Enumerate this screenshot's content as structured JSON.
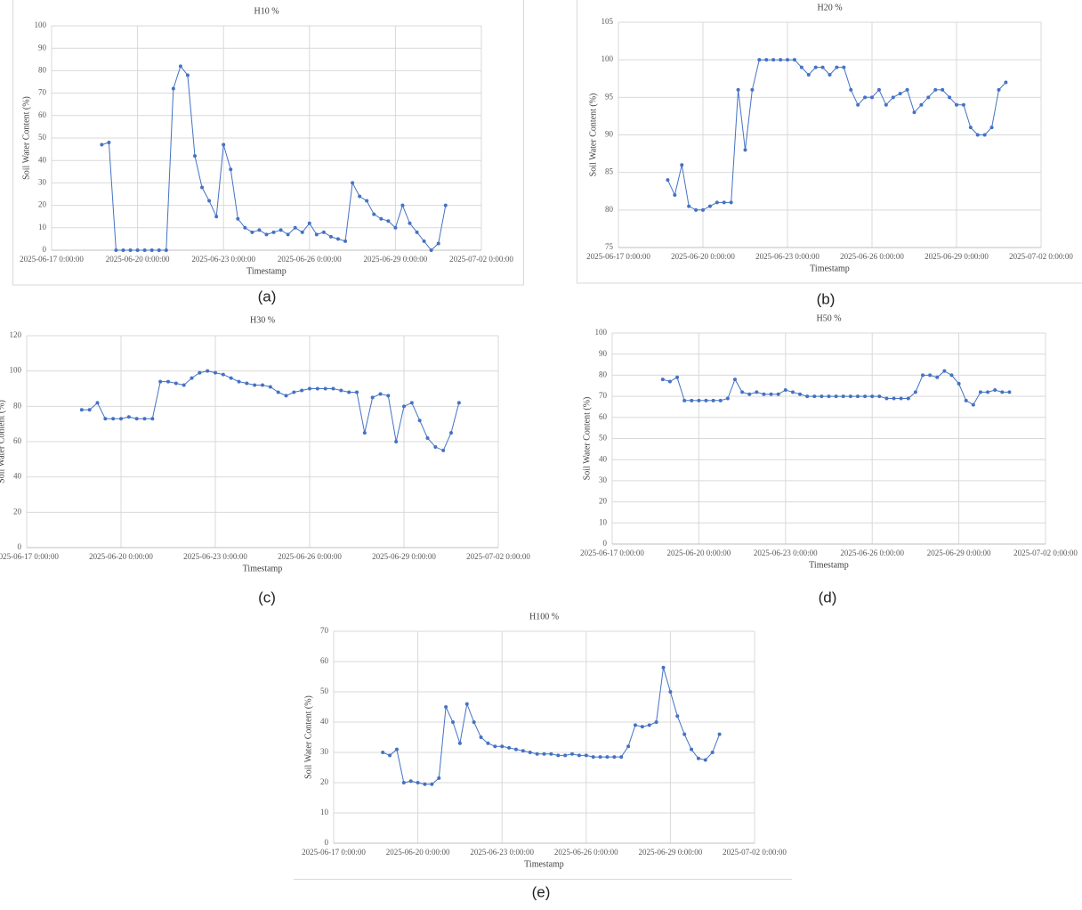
{
  "chart_data": [
    {
      "type": "line",
      "title": "H10 %",
      "xlabel": "Timestamp",
      "ylabel": "Soil Water Content (%)",
      "caption": "(a)",
      "color": "#4472c4",
      "grid": true,
      "x": [
        "2025-06-18 18:00:00",
        "2025-06-19 0:00:00",
        "2025-06-19 6:00:00",
        "2025-06-19 12:00:00",
        "2025-06-19 18:00:00",
        "2025-06-20 0:00:00",
        "2025-06-20 6:00:00",
        "2025-06-20 12:00:00",
        "2025-06-20 18:00:00",
        "2025-06-21 0:00:00",
        "2025-06-21 6:00:00",
        "2025-06-21 12:00:00",
        "2025-06-21 18:00:00",
        "2025-06-22 0:00:00",
        "2025-06-22 6:00:00",
        "2025-06-22 12:00:00",
        "2025-06-22 18:00:00",
        "2025-06-23 0:00:00",
        "2025-06-23 6:00:00",
        "2025-06-23 12:00:00",
        "2025-06-23 18:00:00",
        "2025-06-24 0:00:00",
        "2025-06-24 6:00:00",
        "2025-06-24 12:00:00",
        "2025-06-24 18:00:00",
        "2025-06-25 0:00:00",
        "2025-06-25 6:00:00",
        "2025-06-25 12:00:00",
        "2025-06-25 18:00:00",
        "2025-06-26 0:00:00",
        "2025-06-26 6:00:00",
        "2025-06-26 12:00:00",
        "2025-06-26 18:00:00",
        "2025-06-27 0:00:00",
        "2025-06-27 6:00:00",
        "2025-06-27 12:00:00",
        "2025-06-27 18:00:00",
        "2025-06-28 0:00:00",
        "2025-06-28 6:00:00",
        "2025-06-28 12:00:00",
        "2025-06-28 18:00:00",
        "2025-06-29 0:00:00",
        "2025-06-29 6:00:00",
        "2025-06-29 12:00:00",
        "2025-06-29 18:00:00",
        "2025-06-30 0:00:00",
        "2025-06-30 6:00:00",
        "2025-06-30 12:00:00",
        "2025-06-30 18:00:00"
      ],
      "values": [
        47,
        48,
        0,
        0,
        0,
        0,
        0,
        0,
        0,
        0,
        72,
        82,
        78,
        42,
        28,
        22,
        15,
        47,
        36,
        14,
        10,
        8,
        9,
        7,
        8,
        9,
        7,
        10,
        8,
        12,
        7,
        8,
        6,
        5,
        4,
        30,
        24,
        22,
        16,
        14,
        13,
        10,
        20,
        12,
        8,
        4,
        0,
        3,
        20
      ],
      "xlim": [
        "2025-06-17 0:00:00",
        "2025-07-02 0:00:00"
      ],
      "xticks": [
        "2025-06-17 0:00:00",
        "2025-06-20 0:00:00",
        "2025-06-23 0:00:00",
        "2025-06-26 0:00:00",
        "2025-06-29 0:00:00",
        "2025-07-02 0:00:00"
      ],
      "ylim": [
        0,
        100
      ],
      "yticks": [
        0,
        10,
        20,
        30,
        40,
        50,
        60,
        70,
        80,
        90,
        100
      ]
    },
    {
      "type": "line",
      "title": "H20 %",
      "xlabel": "Timestamp",
      "ylabel": "Soil Water Content (%)",
      "caption": "(b)",
      "color": "#4472c4",
      "grid": true,
      "x": [
        "2025-06-18 18:00:00",
        "2025-06-19 0:00:00",
        "2025-06-19 6:00:00",
        "2025-06-19 12:00:00",
        "2025-06-19 18:00:00",
        "2025-06-20 0:00:00",
        "2025-06-20 6:00:00",
        "2025-06-20 12:00:00",
        "2025-06-20 18:00:00",
        "2025-06-21 0:00:00",
        "2025-06-21 6:00:00",
        "2025-06-21 12:00:00",
        "2025-06-21 18:00:00",
        "2025-06-22 0:00:00",
        "2025-06-22 6:00:00",
        "2025-06-22 12:00:00",
        "2025-06-22 18:00:00",
        "2025-06-23 0:00:00",
        "2025-06-23 6:00:00",
        "2025-06-23 12:00:00",
        "2025-06-23 18:00:00",
        "2025-06-24 0:00:00",
        "2025-06-24 6:00:00",
        "2025-06-24 12:00:00",
        "2025-06-24 18:00:00",
        "2025-06-25 0:00:00",
        "2025-06-25 6:00:00",
        "2025-06-25 12:00:00",
        "2025-06-25 18:00:00",
        "2025-06-26 0:00:00",
        "2025-06-26 6:00:00",
        "2025-06-26 12:00:00",
        "2025-06-26 18:00:00",
        "2025-06-27 0:00:00",
        "2025-06-27 6:00:00",
        "2025-06-27 12:00:00",
        "2025-06-27 18:00:00",
        "2025-06-28 0:00:00",
        "2025-06-28 6:00:00",
        "2025-06-28 12:00:00",
        "2025-06-28 18:00:00",
        "2025-06-29 0:00:00",
        "2025-06-29 6:00:00",
        "2025-06-29 12:00:00",
        "2025-06-29 18:00:00",
        "2025-06-30 0:00:00",
        "2025-06-30 6:00:00",
        "2025-06-30 12:00:00",
        "2025-06-30 18:00:00"
      ],
      "values": [
        84,
        82,
        86,
        80.5,
        80,
        80,
        80.5,
        81,
        81,
        81,
        96,
        88,
        96,
        100,
        100,
        100,
        100,
        100,
        100,
        99,
        98,
        99,
        99,
        98,
        99,
        99,
        96,
        94,
        95,
        95,
        96,
        94,
        95,
        95.5,
        96,
        93,
        94,
        95,
        96,
        96,
        95,
        94,
        94,
        91,
        90,
        90,
        91,
        96,
        97
      ],
      "xlim": [
        "2025-06-17 0:00:00",
        "2025-07-02 0:00:00"
      ],
      "xticks": [
        "2025-06-17 0:00:00",
        "2025-06-20 0:00:00",
        "2025-06-23 0:00:00",
        "2025-06-26 0:00:00",
        "2025-06-29 0:00:00",
        "2025-07-02 0:00:00"
      ],
      "ylim": [
        75,
        105
      ],
      "yticks": [
        75,
        80,
        85,
        90,
        95,
        100,
        105
      ]
    },
    {
      "type": "line",
      "title": "H30 %",
      "xlabel": "Timestamp",
      "ylabel": "Soil Water Content (%)",
      "caption": "(c)",
      "color": "#4472c4",
      "grid": true,
      "x": [
        "2025-06-18 18:00:00",
        "2025-06-19 0:00:00",
        "2025-06-19 6:00:00",
        "2025-06-19 12:00:00",
        "2025-06-19 18:00:00",
        "2025-06-20 0:00:00",
        "2025-06-20 6:00:00",
        "2025-06-20 12:00:00",
        "2025-06-20 18:00:00",
        "2025-06-21 0:00:00",
        "2025-06-21 6:00:00",
        "2025-06-21 12:00:00",
        "2025-06-21 18:00:00",
        "2025-06-22 0:00:00",
        "2025-06-22 6:00:00",
        "2025-06-22 12:00:00",
        "2025-06-22 18:00:00",
        "2025-06-23 0:00:00",
        "2025-06-23 6:00:00",
        "2025-06-23 12:00:00",
        "2025-06-23 18:00:00",
        "2025-06-24 0:00:00",
        "2025-06-24 6:00:00",
        "2025-06-24 12:00:00",
        "2025-06-24 18:00:00",
        "2025-06-25 0:00:00",
        "2025-06-25 6:00:00",
        "2025-06-25 12:00:00",
        "2025-06-25 18:00:00",
        "2025-06-26 0:00:00",
        "2025-06-26 6:00:00",
        "2025-06-26 12:00:00",
        "2025-06-26 18:00:00",
        "2025-06-27 0:00:00",
        "2025-06-27 6:00:00",
        "2025-06-27 12:00:00",
        "2025-06-27 18:00:00",
        "2025-06-28 0:00:00",
        "2025-06-28 6:00:00",
        "2025-06-28 12:00:00",
        "2025-06-28 18:00:00",
        "2025-06-29 0:00:00",
        "2025-06-29 6:00:00",
        "2025-06-29 12:00:00",
        "2025-06-29 18:00:00",
        "2025-06-30 0:00:00",
        "2025-06-30 6:00:00",
        "2025-06-30 12:00:00",
        "2025-06-30 18:00:00"
      ],
      "values": [
        78,
        78,
        82,
        73,
        73,
        73,
        74,
        73,
        73,
        73,
        94,
        94,
        93,
        92,
        96,
        99,
        100,
        99,
        98,
        96,
        94,
        93,
        92,
        92,
        91,
        88,
        86,
        88,
        89,
        90,
        90,
        90,
        90,
        89,
        88,
        88,
        65,
        85,
        87,
        86,
        60,
        80,
        82,
        72,
        62,
        57,
        55,
        65,
        82
      ],
      "xlim": [
        "2025-06-17 0:00:00",
        "2025-07-02 0:00:00"
      ],
      "xticks": [
        "2025-06-17 0:00:00",
        "2025-06-20 0:00:00",
        "2025-06-23 0:00:00",
        "2025-06-26 0:00:00",
        "2025-06-29 0:00:00",
        "2025-07-02 0:00:00"
      ],
      "ylim": [
        0,
        120
      ],
      "yticks": [
        0,
        20,
        40,
        60,
        80,
        100,
        120
      ]
    },
    {
      "type": "line",
      "title": "H50 %",
      "xlabel": "Timestamp",
      "ylabel": "Soil Water Content (%)",
      "caption": "(d)",
      "color": "#4472c4",
      "grid": true,
      "x": [
        "2025-06-18 18:00:00",
        "2025-06-19 0:00:00",
        "2025-06-19 6:00:00",
        "2025-06-19 12:00:00",
        "2025-06-19 18:00:00",
        "2025-06-20 0:00:00",
        "2025-06-20 6:00:00",
        "2025-06-20 12:00:00",
        "2025-06-20 18:00:00",
        "2025-06-21 0:00:00",
        "2025-06-21 6:00:00",
        "2025-06-21 12:00:00",
        "2025-06-21 18:00:00",
        "2025-06-22 0:00:00",
        "2025-06-22 6:00:00",
        "2025-06-22 12:00:00",
        "2025-06-22 18:00:00",
        "2025-06-23 0:00:00",
        "2025-06-23 6:00:00",
        "2025-06-23 12:00:00",
        "2025-06-23 18:00:00",
        "2025-06-24 0:00:00",
        "2025-06-24 6:00:00",
        "2025-06-24 12:00:00",
        "2025-06-24 18:00:00",
        "2025-06-25 0:00:00",
        "2025-06-25 6:00:00",
        "2025-06-25 12:00:00",
        "2025-06-25 18:00:00",
        "2025-06-26 0:00:00",
        "2025-06-26 6:00:00",
        "2025-06-26 12:00:00",
        "2025-06-26 18:00:00",
        "2025-06-27 0:00:00",
        "2025-06-27 6:00:00",
        "2025-06-27 12:00:00",
        "2025-06-27 18:00:00",
        "2025-06-28 0:00:00",
        "2025-06-28 6:00:00",
        "2025-06-28 12:00:00",
        "2025-06-28 18:00:00",
        "2025-06-29 0:00:00",
        "2025-06-29 6:00:00",
        "2025-06-29 12:00:00",
        "2025-06-29 18:00:00",
        "2025-06-30 0:00:00",
        "2025-06-30 6:00:00",
        "2025-06-30 12:00:00",
        "2025-06-30 18:00:00"
      ],
      "values": [
        78,
        77,
        79,
        68,
        68,
        68,
        68,
        68,
        68,
        69,
        78,
        72,
        71,
        72,
        71,
        71,
        71,
        73,
        72,
        71,
        70,
        70,
        70,
        70,
        70,
        70,
        70,
        70,
        70,
        70,
        70,
        69,
        69,
        69,
        69,
        72,
        80,
        80,
        79,
        82,
        80,
        76,
        68,
        66,
        72,
        72,
        73,
        72,
        72
      ],
      "xlim": [
        "2025-06-17 0:00:00",
        "2025-07-02 0:00:00"
      ],
      "xticks": [
        "2025-06-17 0:00:00",
        "2025-06-20 0:00:00",
        "2025-06-23 0:00:00",
        "2025-06-26 0:00:00",
        "2025-06-29 0:00:00",
        "2025-07-02 0:00:00"
      ],
      "ylim": [
        0,
        100
      ],
      "yticks": [
        0,
        10,
        20,
        30,
        40,
        50,
        60,
        70,
        80,
        90,
        100
      ]
    },
    {
      "type": "line",
      "title": "H100 %",
      "xlabel": "Timestamp",
      "ylabel": "Soil Water Content (%)",
      "caption": "(e)",
      "color": "#4472c4",
      "grid": true,
      "x": [
        "2025-06-18 18:00:00",
        "2025-06-19 0:00:00",
        "2025-06-19 6:00:00",
        "2025-06-19 12:00:00",
        "2025-06-19 18:00:00",
        "2025-06-20 0:00:00",
        "2025-06-20 6:00:00",
        "2025-06-20 12:00:00",
        "2025-06-20 18:00:00",
        "2025-06-21 0:00:00",
        "2025-06-21 6:00:00",
        "2025-06-21 12:00:00",
        "2025-06-21 18:00:00",
        "2025-06-22 0:00:00",
        "2025-06-22 6:00:00",
        "2025-06-22 12:00:00",
        "2025-06-22 18:00:00",
        "2025-06-23 0:00:00",
        "2025-06-23 6:00:00",
        "2025-06-23 12:00:00",
        "2025-06-23 18:00:00",
        "2025-06-24 0:00:00",
        "2025-06-24 6:00:00",
        "2025-06-24 12:00:00",
        "2025-06-24 18:00:00",
        "2025-06-25 0:00:00",
        "2025-06-25 6:00:00",
        "2025-06-25 12:00:00",
        "2025-06-25 18:00:00",
        "2025-06-26 0:00:00",
        "2025-06-26 6:00:00",
        "2025-06-26 12:00:00",
        "2025-06-26 18:00:00",
        "2025-06-27 0:00:00",
        "2025-06-27 6:00:00",
        "2025-06-27 12:00:00",
        "2025-06-27 18:00:00",
        "2025-06-28 0:00:00",
        "2025-06-28 6:00:00",
        "2025-06-28 12:00:00",
        "2025-06-28 18:00:00",
        "2025-06-29 0:00:00",
        "2025-06-29 6:00:00",
        "2025-06-29 12:00:00",
        "2025-06-29 18:00:00",
        "2025-06-30 0:00:00",
        "2025-06-30 6:00:00",
        "2025-06-30 12:00:00",
        "2025-06-30 18:00:00"
      ],
      "values": [
        30,
        29,
        31,
        20,
        20.5,
        20,
        19.5,
        19.5,
        21.5,
        45,
        40,
        33,
        46,
        40,
        35,
        33,
        32,
        32,
        31.5,
        31,
        30.5,
        30,
        29.5,
        29.5,
        29.5,
        29,
        29,
        29.5,
        29,
        29,
        28.5,
        28.5,
        28.5,
        28.5,
        28.5,
        32,
        39,
        38.5,
        39,
        40,
        58,
        50,
        42,
        36,
        31,
        28,
        27.5,
        30,
        36
      ],
      "xlim": [
        "2025-06-17 0:00:00",
        "2025-07-02 0:00:00"
      ],
      "xticks": [
        "2025-06-17 0:00:00",
        "2025-06-20 0:00:00",
        "2025-06-23 0:00:00",
        "2025-06-26 0:00:00",
        "2025-06-29 0:00:00",
        "2025-07-02 0:00:00"
      ],
      "ylim": [
        0,
        70
      ],
      "yticks": [
        0,
        10,
        20,
        30,
        40,
        50,
        60,
        70
      ]
    }
  ]
}
